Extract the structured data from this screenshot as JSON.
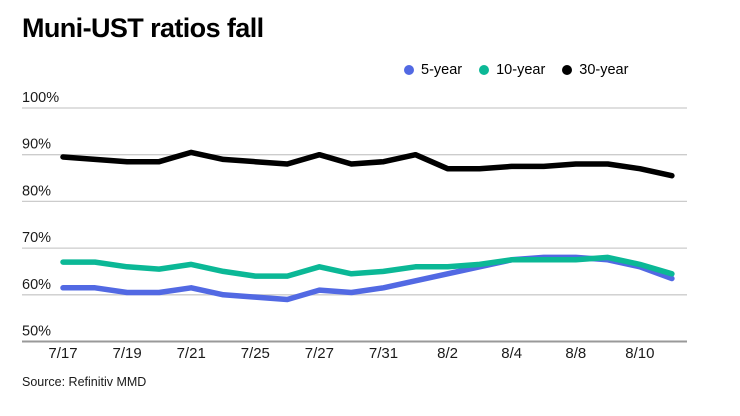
{
  "title": "Muni-UST ratios fall",
  "source": "Source: Refinitiv MMD",
  "colors": {
    "background": "#ffffff",
    "grid": "#cccccc",
    "axis_line": "#999999",
    "text": "#000000",
    "series_5yr": "#5269e3",
    "series_10yr": "#0bb896",
    "series_30yr": "#000000"
  },
  "legend": {
    "position": "top-right",
    "items": [
      "5-year",
      "10-year",
      "30-year"
    ]
  },
  "chart_data": {
    "type": "line",
    "title": "Muni-UST ratios fall",
    "xlabel": "",
    "ylabel": "",
    "ylim": [
      50,
      100
    ],
    "y_ticks": [
      100,
      90,
      80,
      70,
      60,
      50
    ],
    "y_tick_suffix": "%",
    "grid": "horizontal",
    "legend_position": "top-right",
    "x": [
      "7/17",
      "7/18",
      "7/19",
      "7/20",
      "7/21",
      "7/24",
      "7/25",
      "7/26",
      "7/27",
      "7/28",
      "7/31",
      "8/1",
      "8/2",
      "8/3",
      "8/4",
      "8/7",
      "8/8",
      "8/9",
      "8/10",
      "8/11"
    ],
    "x_tick_labels": [
      "7/17",
      "7/19",
      "7/21",
      "7/25",
      "7/27",
      "7/31",
      "8/2",
      "8/4",
      "8/8",
      "8/10"
    ],
    "x_tick_indices": [
      0,
      2,
      4,
      6,
      8,
      10,
      12,
      14,
      16,
      18
    ],
    "series": [
      {
        "name": "5-year",
        "color": "#5269e3",
        "values": [
          61.5,
          61.5,
          60.5,
          60.5,
          61.5,
          60,
          59.5,
          59,
          61,
          60.5,
          61.5,
          63,
          64.5,
          66,
          67.5,
          68,
          68,
          67.5,
          66,
          63.5
        ]
      },
      {
        "name": "10-year",
        "color": "#0bb896",
        "values": [
          67,
          67,
          66,
          65.5,
          66.5,
          65,
          64,
          64,
          66,
          64.5,
          65,
          66,
          66,
          66.5,
          67.5,
          67.5,
          67.5,
          68,
          66.5,
          64.5
        ]
      },
      {
        "name": "30-year",
        "color": "#000000",
        "values": [
          89.5,
          89,
          88.5,
          88.5,
          90.5,
          89,
          88.5,
          88,
          90,
          88,
          88.5,
          90,
          87,
          87,
          87.5,
          87.5,
          88,
          88,
          87,
          85.5
        ]
      }
    ]
  }
}
